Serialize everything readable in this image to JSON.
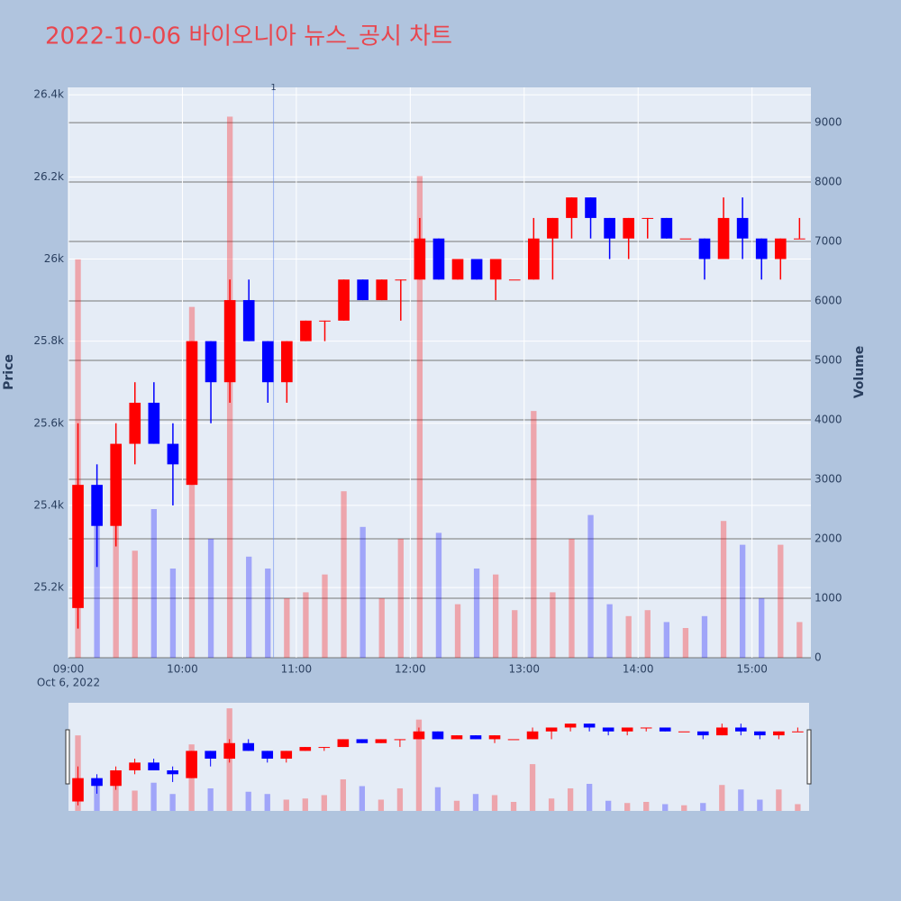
{
  "chart_data": {
    "type": "candlestick",
    "title": "2022-10-06 바이오니아 뉴스_공시 차트",
    "ylabel": "Price",
    "y2label": "Volume",
    "x": [
      "09:00",
      "09:10",
      "09:20",
      "09:30",
      "09:40",
      "09:50",
      "10:00",
      "10:10",
      "10:20",
      "10:30",
      "10:40",
      "10:50",
      "11:00",
      "11:10",
      "11:20",
      "11:30",
      "11:40",
      "11:50",
      "12:00",
      "12:10",
      "12:20",
      "12:30",
      "12:40",
      "12:50",
      "13:00",
      "13:10",
      "13:20",
      "13:30",
      "13:40",
      "13:50",
      "14:00",
      "14:10",
      "14:20",
      "14:30",
      "14:40",
      "14:50",
      "15:00",
      "15:10",
      "15:20"
    ],
    "open": [
      25150,
      25450,
      25350,
      25550,
      25650,
      25550,
      25450,
      25800,
      25700,
      25900,
      25800,
      25700,
      25800,
      25850,
      25850,
      25950,
      25900,
      25950,
      25950,
      26050,
      25950,
      26000,
      25950,
      25950,
      25950,
      26050,
      26100,
      26150,
      26100,
      26050,
      26100,
      26100,
      26050,
      26050,
      26000,
      26100,
      26050,
      26000,
      26050
    ],
    "high": [
      25600,
      25500,
      25600,
      25700,
      25700,
      25600,
      25800,
      25800,
      25950,
      25950,
      25800,
      25800,
      25850,
      25850,
      25950,
      25950,
      25950,
      25950,
      26100,
      26050,
      26000,
      26000,
      26000,
      25950,
      26100,
      26100,
      26150,
      26150,
      26100,
      26100,
      26100,
      26100,
      26050,
      26050,
      26150,
      26150,
      26050,
      26050,
      26100
    ],
    "low": [
      25100,
      25250,
      25300,
      25500,
      25550,
      25400,
      25450,
      25600,
      25650,
      25800,
      25650,
      25650,
      25800,
      25800,
      25850,
      25900,
      25900,
      25850,
      25950,
      25950,
      25950,
      25950,
      25900,
      25950,
      25950,
      25950,
      26050,
      26050,
      26000,
      26000,
      26050,
      26050,
      26050,
      25950,
      26000,
      26000,
      25950,
      25950,
      26050
    ],
    "close": [
      25450,
      25350,
      25550,
      25650,
      25550,
      25500,
      25800,
      25700,
      25900,
      25800,
      25700,
      25800,
      25850,
      25850,
      25950,
      25900,
      25950,
      25950,
      26050,
      25950,
      26000,
      25950,
      26000,
      25950,
      26050,
      26100,
      26150,
      26100,
      26050,
      26100,
      26100,
      26050,
      26050,
      26000,
      26100,
      26050,
      26000,
      26050,
      26050
    ],
    "volume": [
      6700,
      2600,
      2500,
      1800,
      2500,
      1500,
      5900,
      2000,
      9100,
      1700,
      1500,
      1000,
      1100,
      1400,
      2800,
      2200,
      1000,
      2000,
      8100,
      2100,
      900,
      1500,
      1400,
      800,
      4150,
      1100,
      2000,
      2400,
      900,
      700,
      800,
      600,
      500,
      700,
      2300,
      1900,
      1000,
      1900,
      600
    ],
    "up_color": "#ff0000",
    "down_color": "#0000ff",
    "xlim": [
      "09:00",
      "15:31"
    ],
    "xticks": [
      "09:00",
      "10:00",
      "11:00",
      "12:00",
      "13:00",
      "14:00",
      "15:00"
    ],
    "x_sub_label": "Oct 6, 2022",
    "ylim": [
      25029,
      26418
    ],
    "yticks": [
      {
        "value": 25200,
        "label": "25.2k"
      },
      {
        "value": 25400,
        "label": "25.4k"
      },
      {
        "value": 25600,
        "label": "25.6k"
      },
      {
        "value": 25800,
        "label": "25.8k"
      },
      {
        "value": 26000,
        "label": "26k"
      },
      {
        "value": 26200,
        "label": "26.2k"
      },
      {
        "value": 26400,
        "label": "26.4k"
      }
    ],
    "y2lim": [
      0,
      9592
    ],
    "y2ticks": [
      0,
      1000,
      2000,
      3000,
      4000,
      5000,
      6000,
      7000,
      8000,
      9000
    ],
    "annotations": [
      {
        "x": "10:48",
        "text": "1"
      }
    ],
    "rangeslider": true
  }
}
